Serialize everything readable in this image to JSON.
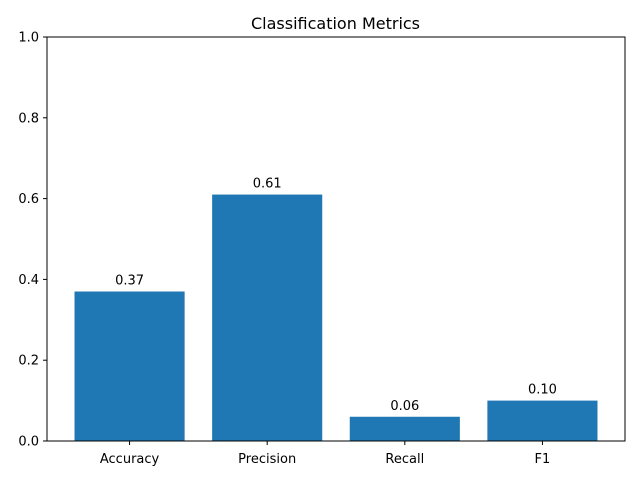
{
  "chart_data": {
    "type": "bar",
    "title": "Classification Metrics",
    "xlabel": "",
    "ylabel": "",
    "categories": [
      "Accuracy",
      "Precision",
      "Recall",
      "F1"
    ],
    "values": [
      0.37,
      0.61,
      0.06,
      0.1
    ],
    "value_labels": [
      "0.37",
      "0.61",
      "0.06",
      "0.10"
    ],
    "ylim": [
      0,
      1.0
    ],
    "yticks": [
      0.0,
      0.2,
      0.4,
      0.6,
      0.8,
      1.0
    ],
    "ytick_labels": [
      "0.0",
      "0.2",
      "0.4",
      "0.6",
      "0.8",
      "1.0"
    ],
    "grid": false,
    "colors": {
      "bar": "#1f77b4"
    }
  }
}
